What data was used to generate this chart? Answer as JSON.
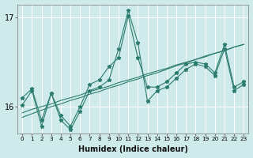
{
  "xlabel": "Humidex (Indice chaleur)",
  "background_color": "#ceeaea",
  "grid_color": "#ffffff",
  "line_color": "#2d7d6e",
  "x": [
    0,
    1,
    2,
    3,
    4,
    5,
    6,
    7,
    8,
    9,
    10,
    11,
    12,
    13,
    14,
    15,
    16,
    17,
    18,
    19,
    20,
    21,
    22,
    23
  ],
  "series1": [
    16.1,
    16.2,
    15.85,
    16.15,
    15.9,
    15.78,
    16.0,
    16.25,
    16.3,
    16.45,
    16.55,
    17.02,
    16.55,
    16.22,
    16.22,
    16.28,
    16.38,
    16.48,
    16.5,
    16.48,
    16.38,
    16.7,
    16.22,
    16.28
  ],
  "series2": [
    16.02,
    16.18,
    15.78,
    16.15,
    15.85,
    15.74,
    15.95,
    16.18,
    16.22,
    16.3,
    16.65,
    17.08,
    16.72,
    16.06,
    16.18,
    16.22,
    16.32,
    16.42,
    16.48,
    16.45,
    16.35,
    16.65,
    16.18,
    16.25
  ],
  "trend1": [
    15.93,
    15.97,
    16.0,
    16.03,
    16.07,
    16.1,
    16.13,
    16.17,
    16.2,
    16.23,
    16.27,
    16.3,
    16.33,
    16.37,
    16.4,
    16.43,
    16.47,
    16.5,
    16.53,
    16.57,
    16.6,
    16.63,
    16.67,
    16.7
  ],
  "trend2": [
    15.88,
    15.92,
    15.96,
    16.0,
    16.03,
    16.07,
    16.1,
    16.14,
    16.17,
    16.21,
    16.24,
    16.28,
    16.31,
    16.35,
    16.38,
    16.42,
    16.46,
    16.49,
    16.53,
    16.56,
    16.6,
    16.63,
    16.67,
    16.7
  ],
  "ylim": [
    15.7,
    17.15
  ],
  "ytick_positions": [
    16.0,
    17.0
  ],
  "ytick_labels": [
    "16",
    "17"
  ],
  "xlim": [
    -0.5,
    23.5
  ]
}
